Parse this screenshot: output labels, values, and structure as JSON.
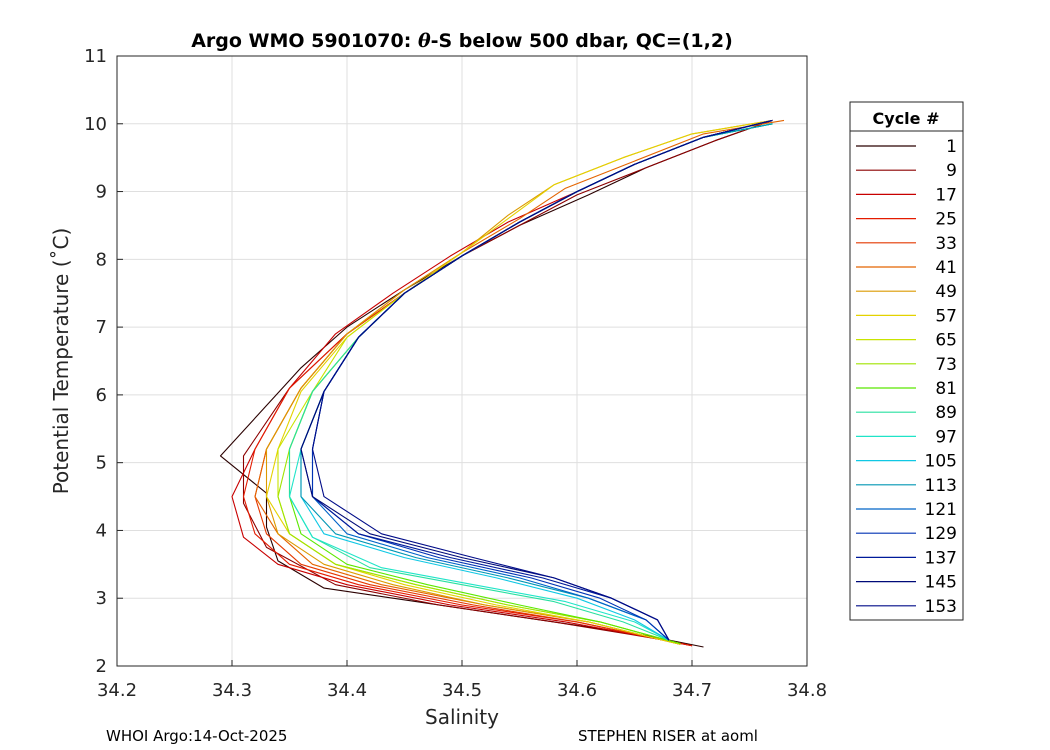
{
  "chart_data": {
    "type": "line",
    "title_pre": "Argo WMO 5901070: ",
    "title_theta": "θ",
    "title_post": "-S below 500 dbar,  QC=(1,2)",
    "xlabel": "Salinity",
    "ylabel": "Potential Temperature (˚C)",
    "xlim": [
      34.2,
      34.8
    ],
    "ylim": [
      2,
      11
    ],
    "xticks": [
      34.2,
      34.3,
      34.4,
      34.5,
      34.6,
      34.7,
      34.8
    ],
    "xtick_labels": [
      "34.2",
      "34.3",
      "34.4",
      "34.5",
      "34.6",
      "34.7",
      "34.8"
    ],
    "yticks": [
      2,
      3,
      4,
      5,
      6,
      7,
      8,
      9,
      10,
      11
    ],
    "ytick_labels": [
      "2",
      "3",
      "4",
      "5",
      "6",
      "7",
      "8",
      "9",
      "10",
      "11"
    ],
    "grid": true,
    "legend": {
      "title": "Cycle #",
      "position": "outside-right",
      "entries": [
        "1",
        "9",
        "17",
        "25",
        "33",
        "41",
        "49",
        "57",
        "65",
        "73",
        "81",
        "89",
        "97",
        "105",
        "113",
        "121",
        "129",
        "137",
        "145",
        "153"
      ],
      "colors": [
        "#2a0000",
        "#8c0000",
        "#c80000",
        "#e41b00",
        "#e43800",
        "#e46400",
        "#dc9a00",
        "#e4d200",
        "#c8e400",
        "#a0e400",
        "#5ae800",
        "#28e0a0",
        "#20e4c8",
        "#10c8e4",
        "#0096b4",
        "#0064c8",
        "#0032b4",
        "#001a9a",
        "#000a78",
        "#000c88"
      ]
    },
    "series": [
      {
        "name": "1",
        "x": [
          34.77,
          34.72,
          34.66,
          34.61,
          34.55,
          34.5,
          34.45,
          34.4,
          34.36,
          34.29,
          34.33,
          34.33,
          34.34,
          34.38,
          34.46,
          34.56,
          34.66,
          34.71
        ],
        "y": [
          10.05,
          9.75,
          9.35,
          8.95,
          8.5,
          8.05,
          7.55,
          7.0,
          6.4,
          5.1,
          4.55,
          4.05,
          3.55,
          3.15,
          2.95,
          2.7,
          2.45,
          2.28
        ]
      },
      {
        "name": "9",
        "x": [
          34.77,
          34.72,
          34.66,
          34.6,
          34.55,
          34.5,
          34.45,
          34.4,
          34.35,
          34.31,
          34.31,
          34.33,
          34.39,
          34.48,
          34.58,
          34.67,
          34.7
        ],
        "y": [
          10.05,
          9.75,
          9.35,
          8.95,
          8.5,
          8.05,
          7.5,
          6.9,
          6.1,
          5.1,
          4.4,
          3.75,
          3.2,
          2.9,
          2.65,
          2.4,
          2.3
        ]
      },
      {
        "name": "17",
        "x": [
          34.77,
          34.71,
          34.65,
          34.6,
          34.54,
          34.49,
          34.44,
          34.39,
          34.35,
          34.32,
          34.3,
          34.31,
          34.34,
          34.4,
          34.49,
          34.59,
          34.67,
          34.7
        ],
        "y": [
          10.05,
          9.8,
          9.4,
          9.0,
          8.55,
          8.05,
          7.5,
          6.9,
          6.1,
          5.2,
          4.5,
          3.9,
          3.5,
          3.2,
          2.9,
          2.65,
          2.4,
          2.3
        ]
      },
      {
        "name": "25",
        "x": [
          34.77,
          34.71,
          34.65,
          34.6,
          34.55,
          34.5,
          34.45,
          34.4,
          34.35,
          34.32,
          34.31,
          34.32,
          34.35,
          34.41,
          34.5,
          34.6,
          34.67,
          34.7
        ],
        "y": [
          10.05,
          9.8,
          9.4,
          9.0,
          8.55,
          8.05,
          7.5,
          6.9,
          6.1,
          5.2,
          4.5,
          3.95,
          3.5,
          3.2,
          2.9,
          2.65,
          2.4,
          2.3
        ]
      },
      {
        "name": "33",
        "x": [
          34.77,
          34.71,
          34.65,
          34.6,
          34.55,
          34.5,
          34.45,
          34.4,
          34.36,
          34.33,
          34.32,
          34.33,
          34.36,
          34.42,
          34.51,
          34.6,
          34.67,
          34.69
        ],
        "y": [
          10.05,
          9.8,
          9.4,
          9.0,
          8.55,
          8.05,
          7.5,
          6.9,
          6.1,
          5.2,
          4.5,
          3.95,
          3.5,
          3.2,
          2.9,
          2.65,
          2.4,
          2.32
        ]
      },
      {
        "name": "41",
        "x": [
          34.78,
          34.71,
          34.65,
          34.59,
          34.55,
          34.5,
          34.45,
          34.4,
          34.36,
          34.33,
          34.32,
          34.34,
          34.37,
          34.43,
          34.52,
          34.61,
          34.67,
          34.69
        ],
        "y": [
          10.05,
          9.85,
          9.45,
          9.05,
          8.6,
          8.1,
          7.55,
          6.9,
          6.1,
          5.2,
          4.5,
          3.95,
          3.5,
          3.2,
          2.9,
          2.65,
          2.4,
          2.32
        ]
      },
      {
        "name": "49",
        "x": [
          34.77,
          34.7,
          34.64,
          34.58,
          34.54,
          34.5,
          34.45,
          34.4,
          34.36,
          34.33,
          34.33,
          34.34,
          34.38,
          34.44,
          34.52,
          34.61,
          34.67,
          34.69
        ],
        "y": [
          10.05,
          9.85,
          9.5,
          9.1,
          8.65,
          8.1,
          7.55,
          6.9,
          6.1,
          5.2,
          4.5,
          3.95,
          3.5,
          3.2,
          2.9,
          2.65,
          2.4,
          2.32
        ]
      },
      {
        "name": "57",
        "x": [
          34.77,
          34.7,
          34.64,
          34.58,
          34.54,
          34.5,
          34.45,
          34.4,
          34.36,
          34.34,
          34.33,
          34.35,
          34.39,
          34.45,
          34.53,
          34.61,
          34.67,
          34.69
        ],
        "y": [
          10.05,
          9.85,
          9.5,
          9.1,
          8.6,
          8.1,
          7.5,
          6.85,
          6.05,
          5.2,
          4.5,
          3.95,
          3.5,
          3.2,
          2.9,
          2.65,
          2.4,
          2.32
        ]
      },
      {
        "name": "65",
        "x": [
          34.77,
          34.71,
          34.65,
          34.6,
          34.55,
          34.5,
          34.45,
          34.4,
          34.37,
          34.34,
          34.34,
          34.35,
          34.39,
          34.46,
          34.54,
          34.62,
          34.67,
          34.69
        ],
        "y": [
          10.0,
          9.8,
          9.4,
          9.0,
          8.55,
          8.05,
          7.5,
          6.85,
          6.05,
          5.2,
          4.5,
          3.95,
          3.5,
          3.2,
          2.9,
          2.65,
          2.42,
          2.33
        ]
      },
      {
        "name": "73",
        "x": [
          34.77,
          34.71,
          34.65,
          34.6,
          34.55,
          34.5,
          34.45,
          34.41,
          34.37,
          34.35,
          34.34,
          34.35,
          34.39,
          34.46,
          34.54,
          34.62,
          34.67,
          34.69
        ],
        "y": [
          10.0,
          9.8,
          9.4,
          9.0,
          8.55,
          8.05,
          7.5,
          6.85,
          6.05,
          5.2,
          4.5,
          3.95,
          3.5,
          3.2,
          2.9,
          2.65,
          2.42,
          2.33
        ]
      },
      {
        "name": "81",
        "x": [
          34.77,
          34.71,
          34.65,
          34.6,
          34.55,
          34.5,
          34.45,
          34.41,
          34.37,
          34.35,
          34.35,
          34.36,
          34.4,
          34.47,
          34.55,
          34.62,
          34.67,
          34.69
        ],
        "y": [
          10.0,
          9.8,
          9.4,
          9.0,
          8.55,
          8.05,
          7.5,
          6.85,
          6.05,
          5.2,
          4.5,
          3.95,
          3.5,
          3.2,
          2.9,
          2.65,
          2.42,
          2.33
        ]
      },
      {
        "name": "89",
        "x": [
          34.77,
          34.71,
          34.65,
          34.6,
          34.55,
          34.5,
          34.45,
          34.41,
          34.37,
          34.35,
          34.35,
          34.37,
          34.42,
          34.5,
          34.58,
          34.64,
          34.68
        ],
        "y": [
          10.0,
          9.8,
          9.4,
          9.0,
          8.55,
          8.05,
          7.5,
          6.85,
          6.05,
          5.2,
          4.5,
          3.9,
          3.45,
          3.2,
          2.95,
          2.65,
          2.38
        ]
      },
      {
        "name": "97",
        "x": [
          34.77,
          34.71,
          34.65,
          34.6,
          34.55,
          34.5,
          34.45,
          34.41,
          34.38,
          34.36,
          34.35,
          34.37,
          34.43,
          34.51,
          34.59,
          34.65,
          34.68
        ],
        "y": [
          10.0,
          9.8,
          9.4,
          9.0,
          8.55,
          8.05,
          7.5,
          6.85,
          6.05,
          5.2,
          4.5,
          3.9,
          3.45,
          3.2,
          2.95,
          2.65,
          2.38
        ]
      },
      {
        "name": "105",
        "x": [
          34.77,
          34.71,
          34.65,
          34.6,
          34.55,
          34.5,
          34.45,
          34.41,
          34.38,
          34.36,
          34.36,
          34.38,
          34.45,
          34.53,
          34.6,
          34.65,
          34.68
        ],
        "y": [
          10.0,
          9.8,
          9.4,
          9.0,
          8.55,
          8.05,
          7.5,
          6.85,
          6.05,
          5.2,
          4.5,
          3.95,
          3.6,
          3.3,
          3.0,
          2.68,
          2.38
        ]
      },
      {
        "name": "113",
        "x": [
          34.77,
          34.71,
          34.65,
          34.6,
          34.55,
          34.5,
          34.45,
          34.41,
          34.38,
          34.36,
          34.36,
          34.39,
          34.46,
          34.54,
          34.61,
          34.66,
          34.68
        ],
        "y": [
          10.0,
          9.8,
          9.4,
          9.0,
          8.55,
          8.05,
          7.5,
          6.85,
          6.05,
          5.2,
          4.5,
          3.95,
          3.6,
          3.3,
          3.0,
          2.68,
          2.38
        ]
      },
      {
        "name": "121",
        "x": [
          34.77,
          34.71,
          34.65,
          34.6,
          34.55,
          34.5,
          34.45,
          34.41,
          34.38,
          34.37,
          34.37,
          34.4,
          34.47,
          34.55,
          34.61,
          34.66,
          34.68
        ],
        "y": [
          10.05,
          9.8,
          9.4,
          9.0,
          8.55,
          8.05,
          7.5,
          6.85,
          6.05,
          5.2,
          4.5,
          3.95,
          3.6,
          3.3,
          3.0,
          2.68,
          2.38
        ]
      },
      {
        "name": "129",
        "x": [
          34.77,
          34.71,
          34.65,
          34.6,
          34.55,
          34.5,
          34.45,
          34.41,
          34.38,
          34.37,
          34.37,
          34.41,
          34.48,
          34.56,
          34.62,
          34.66,
          34.68
        ],
        "y": [
          10.05,
          9.8,
          9.4,
          9.0,
          8.55,
          8.05,
          7.5,
          6.85,
          6.05,
          5.2,
          4.5,
          3.95,
          3.6,
          3.3,
          3.0,
          2.68,
          2.38
        ]
      },
      {
        "name": "137",
        "x": [
          34.77,
          34.71,
          34.65,
          34.6,
          34.55,
          34.5,
          34.45,
          34.41,
          34.38,
          34.36,
          34.37,
          34.41,
          34.49,
          34.57,
          34.63,
          34.67,
          34.68
        ],
        "y": [
          10.05,
          9.8,
          9.4,
          9.0,
          8.55,
          8.05,
          7.5,
          6.85,
          6.05,
          5.2,
          4.5,
          3.95,
          3.6,
          3.3,
          3.0,
          2.68,
          2.38
        ]
      },
      {
        "name": "145",
        "x": [
          34.77,
          34.71,
          34.65,
          34.6,
          34.55,
          34.5,
          34.45,
          34.41,
          34.38,
          34.36,
          34.37,
          34.42,
          34.5,
          34.58,
          34.63,
          34.67,
          34.68
        ],
        "y": [
          10.05,
          9.8,
          9.4,
          9.0,
          8.55,
          8.05,
          7.5,
          6.85,
          6.05,
          5.2,
          4.5,
          3.95,
          3.6,
          3.3,
          3.0,
          2.68,
          2.38
        ]
      },
      {
        "name": "153",
        "x": [
          34.77,
          34.71,
          34.65,
          34.6,
          34.55,
          34.5,
          34.45,
          34.41,
          34.38,
          34.37,
          34.38,
          34.43,
          34.51,
          34.58,
          34.63,
          34.67,
          34.68
        ],
        "y": [
          10.05,
          9.8,
          9.4,
          9.0,
          8.55,
          8.05,
          7.5,
          6.85,
          6.05,
          5.2,
          4.5,
          3.95,
          3.6,
          3.3,
          3.0,
          2.68,
          2.38
        ]
      }
    ]
  },
  "footer": {
    "left": "WHOI Argo:14-Oct-2025",
    "right": "STEPHEN RISER at aoml"
  }
}
